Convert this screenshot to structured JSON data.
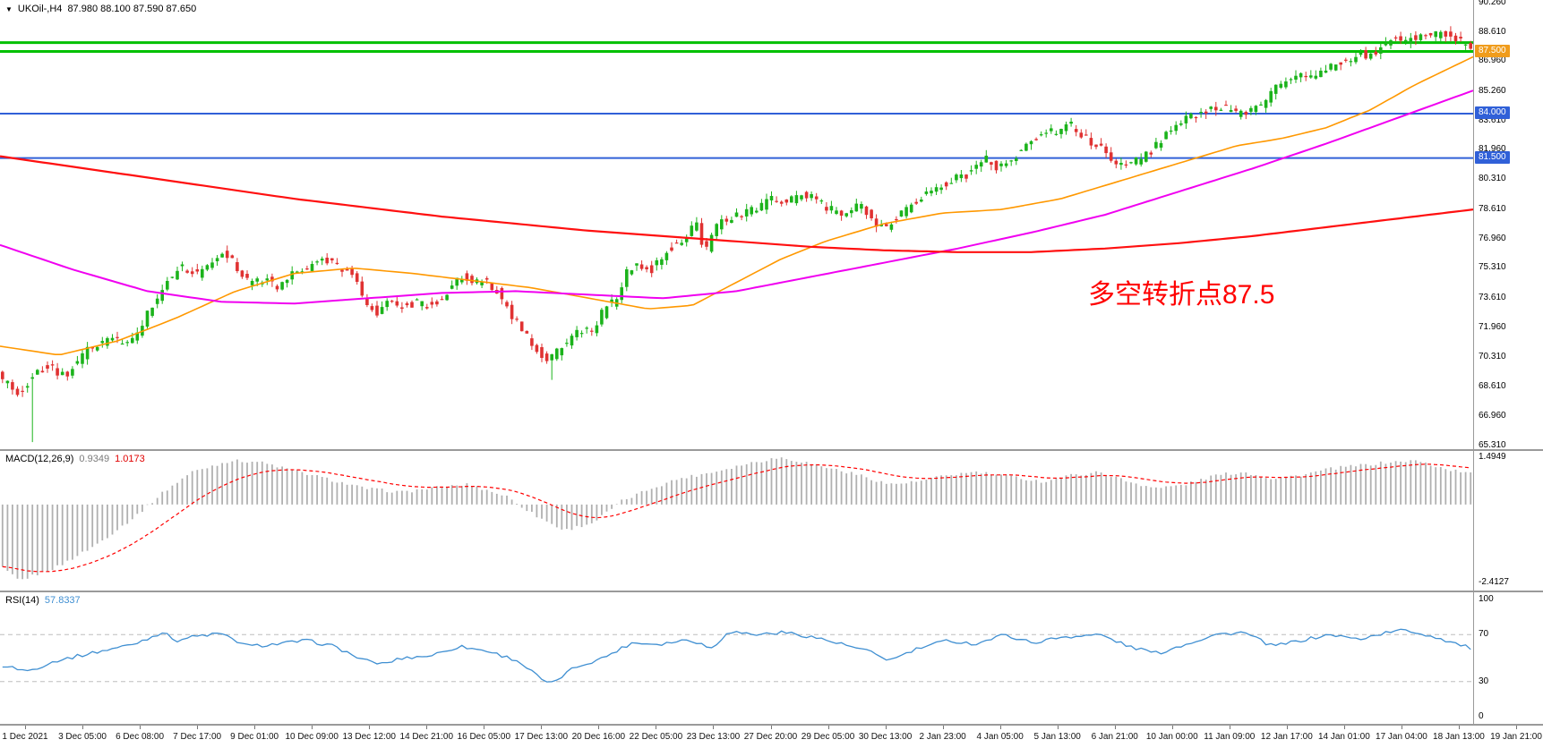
{
  "colors": {
    "up_candle": "#1bb31b",
    "down_candle": "#e03232",
    "hline_green": "#00c000",
    "hline_blue": "#3060d8",
    "tag_orange": "#f09c1c",
    "macd_bar": "#b0b0b0",
    "macd_signal": "#ff0000",
    "rsi_line": "#3f8fd2",
    "level_dash": "#bdbdbd"
  },
  "annotation": {
    "text": "多空转折点87.5",
    "color": "#ff0000"
  },
  "chart_data": [
    {
      "type": "candlestick",
      "symbol": "UKOil-",
      "timeframe": "H4",
      "header": {
        "symbol_period": "UKOil-,H4",
        "ohlc_text": "87.980 88.100 87.590 87.650"
      },
      "latest_ohlc": {
        "open": 87.98,
        "high": 88.1,
        "low": 87.59,
        "close": 87.65
      },
      "num_candles": 295,
      "y_axis": {
        "max": 90.4,
        "min": 65.1,
        "tick_labels": [
          "90.260",
          "88.610",
          "86.960",
          "85.260",
          "83.610",
          "81.960",
          "80.310",
          "78.610",
          "76.960",
          "75.310",
          "73.610",
          "71.960",
          "70.310",
          "68.610",
          "66.960",
          "65.310"
        ]
      },
      "x_tick_labels": [
        "1 Dec 2021",
        "3 Dec 05:00",
        "6 Dec 08:00",
        "7 Dec 17:00",
        "9 Dec 01:00",
        "10 Dec 09:00",
        "13 Dec 12:00",
        "14 Dec 21:00",
        "16 Dec 05:00",
        "17 Dec 13:00",
        "20 Dec 16:00",
        "22 Dec 05:00",
        "23 Dec 13:00",
        "27 Dec 20:00",
        "29 Dec 05:00",
        "30 Dec 13:00",
        "2 Jan 23:00",
        "4 Jan 05:00",
        "5 Jan 13:00",
        "6 Jan 21:00",
        "10 Jan 00:00",
        "11 Jan 09:00",
        "12 Jan 17:00",
        "14 Jan 01:00",
        "17 Jan 04:00",
        "18 Jan 13:00",
        "19 Jan 21:00"
      ],
      "hlines": [
        {
          "value": 88.0,
          "color": "#00c000",
          "width": 3
        },
        {
          "value": 87.5,
          "color": "#00c000",
          "width": 3,
          "tag": "87.500",
          "tag_bg": "#f09c1c"
        },
        {
          "value": 84.0,
          "color": "#3060d8",
          "width": 2,
          "tag": "84.000",
          "tag_bg": "#3060d8"
        },
        {
          "value": 81.5,
          "color": "#3060d8",
          "width": 2,
          "tag": "81.500",
          "tag_bg": "#3060d8"
        }
      ],
      "price_path_anchors": [
        [
          0,
          69.3
        ],
        [
          0.013,
          68.2
        ],
        [
          0.02,
          68.8
        ],
        [
          0.033,
          69.8
        ],
        [
          0.045,
          69.2
        ],
        [
          0.06,
          70.6
        ],
        [
          0.075,
          71.3
        ],
        [
          0.09,
          71.0
        ],
        [
          0.105,
          73.2
        ],
        [
          0.115,
          74.6
        ],
        [
          0.125,
          75.4
        ],
        [
          0.135,
          74.9
        ],
        [
          0.145,
          75.6
        ],
        [
          0.153,
          76.2
        ],
        [
          0.16,
          75.6
        ],
        [
          0.17,
          74.5
        ],
        [
          0.18,
          74.7
        ],
        [
          0.19,
          74.3
        ],
        [
          0.2,
          74.9
        ],
        [
          0.21,
          75.3
        ],
        [
          0.22,
          75.8
        ],
        [
          0.23,
          75.4
        ],
        [
          0.24,
          75.0
        ],
        [
          0.25,
          73.4
        ],
        [
          0.258,
          72.8
        ],
        [
          0.265,
          73.3
        ],
        [
          0.275,
          73.1
        ],
        [
          0.285,
          73.4
        ],
        [
          0.295,
          73.2
        ],
        [
          0.305,
          74.0
        ],
        [
          0.315,
          74.9
        ],
        [
          0.322,
          74.4
        ],
        [
          0.33,
          74.6
        ],
        [
          0.34,
          73.9
        ],
        [
          0.348,
          72.8
        ],
        [
          0.356,
          71.8
        ],
        [
          0.365,
          70.8
        ],
        [
          0.373,
          70.2
        ],
        [
          0.38,
          70.6
        ],
        [
          0.39,
          71.4
        ],
        [
          0.398,
          72.0
        ],
        [
          0.405,
          71.6
        ],
        [
          0.412,
          73.1
        ],
        [
          0.42,
          73.5
        ],
        [
          0.428,
          75.2
        ],
        [
          0.436,
          75.4
        ],
        [
          0.445,
          75.2
        ],
        [
          0.455,
          76.4
        ],
        [
          0.465,
          76.9
        ],
        [
          0.474,
          78.0
        ],
        [
          0.48,
          76.0
        ],
        [
          0.487,
          77.6
        ],
        [
          0.495,
          78.1
        ],
        [
          0.505,
          78.3
        ],
        [
          0.515,
          78.6
        ],
        [
          0.525,
          79.2
        ],
        [
          0.535,
          79.0
        ],
        [
          0.545,
          79.5
        ],
        [
          0.555,
          79.2
        ],
        [
          0.565,
          78.6
        ],
        [
          0.575,
          78.2
        ],
        [
          0.585,
          78.9
        ],
        [
          0.595,
          78.0
        ],
        [
          0.602,
          77.4
        ],
        [
          0.61,
          78.2
        ],
        [
          0.62,
          78.9
        ],
        [
          0.63,
          79.5
        ],
        [
          0.64,
          79.9
        ],
        [
          0.65,
          80.3
        ],
        [
          0.66,
          80.6
        ],
        [
          0.67,
          81.5
        ],
        [
          0.68,
          80.9
        ],
        [
          0.69,
          81.6
        ],
        [
          0.7,
          82.4
        ],
        [
          0.71,
          82.8
        ],
        [
          0.72,
          83.1
        ],
        [
          0.728,
          83.4
        ],
        [
          0.736,
          82.8
        ],
        [
          0.745,
          82.2
        ],
        [
          0.755,
          81.6
        ],
        [
          0.765,
          81.0
        ],
        [
          0.775,
          81.4
        ],
        [
          0.785,
          82.0
        ],
        [
          0.795,
          83.2
        ],
        [
          0.805,
          83.6
        ],
        [
          0.815,
          84.0
        ],
        [
          0.825,
          84.4
        ],
        [
          0.835,
          84.2
        ],
        [
          0.845,
          83.9
        ],
        [
          0.855,
          84.3
        ],
        [
          0.865,
          85.2
        ],
        [
          0.875,
          86.0
        ],
        [
          0.885,
          86.3
        ],
        [
          0.893,
          85.9
        ],
        [
          0.9,
          86.3
        ],
        [
          0.91,
          87.0
        ],
        [
          0.918,
          86.8
        ],
        [
          0.926,
          87.4
        ],
        [
          0.934,
          87.2
        ],
        [
          0.942,
          87.9
        ],
        [
          0.95,
          88.3
        ],
        [
          0.958,
          88.1
        ],
        [
          0.966,
          88.5
        ],
        [
          0.974,
          88.3
        ],
        [
          0.982,
          88.6
        ],
        [
          0.99,
          88.2
        ],
        [
          1,
          87.65
        ]
      ],
      "low_spikes": [
        [
          0.019,
          65.5
        ],
        [
          0.373,
          69.0
        ]
      ],
      "moving_averages": [
        {
          "name": "ma-fast-orange",
          "color": "#ff9800",
          "width": 1.6,
          "anchors": [
            [
              0,
              70.9
            ],
            [
              0.04,
              70.4
            ],
            [
              0.08,
              71.2
            ],
            [
              0.12,
              72.5
            ],
            [
              0.16,
              74.0
            ],
            [
              0.2,
              75.0
            ],
            [
              0.24,
              75.3
            ],
            [
              0.28,
              75.0
            ],
            [
              0.32,
              74.6
            ],
            [
              0.36,
              74.2
            ],
            [
              0.4,
              73.6
            ],
            [
              0.44,
              73.0
            ],
            [
              0.47,
              73.2
            ],
            [
              0.5,
              74.5
            ],
            [
              0.53,
              75.8
            ],
            [
              0.56,
              76.8
            ],
            [
              0.6,
              77.8
            ],
            [
              0.64,
              78.4
            ],
            [
              0.68,
              78.6
            ],
            [
              0.72,
              79.2
            ],
            [
              0.76,
              80.2
            ],
            [
              0.8,
              81.2
            ],
            [
              0.84,
              82.2
            ],
            [
              0.87,
              82.6
            ],
            [
              0.9,
              83.2
            ],
            [
              0.93,
              84.2
            ],
            [
              0.96,
              85.6
            ],
            [
              1,
              87.2
            ]
          ]
        },
        {
          "name": "ma-mid-magenta",
          "color": "#f000f0",
          "width": 2,
          "anchors": [
            [
              0,
              76.6
            ],
            [
              0.05,
              75.2
            ],
            [
              0.1,
              74.0
            ],
            [
              0.15,
              73.4
            ],
            [
              0.2,
              73.3
            ],
            [
              0.25,
              73.6
            ],
            [
              0.3,
              73.9
            ],
            [
              0.35,
              74.0
            ],
            [
              0.4,
              73.8
            ],
            [
              0.45,
              73.6
            ],
            [
              0.5,
              74.0
            ],
            [
              0.55,
              74.8
            ],
            [
              0.6,
              75.6
            ],
            [
              0.65,
              76.4
            ],
            [
              0.7,
              77.3
            ],
            [
              0.75,
              78.3
            ],
            [
              0.8,
              79.6
            ],
            [
              0.85,
              80.9
            ],
            [
              0.9,
              82.3
            ],
            [
              0.95,
              83.8
            ],
            [
              1,
              85.3
            ]
          ]
        },
        {
          "name": "ma-slow-red",
          "color": "#ff1010",
          "width": 2.2,
          "anchors": [
            [
              0,
              81.6
            ],
            [
              0.1,
              80.4
            ],
            [
              0.2,
              79.2
            ],
            [
              0.3,
              78.2
            ],
            [
              0.4,
              77.4
            ],
            [
              0.5,
              76.8
            ],
            [
              0.55,
              76.5
            ],
            [
              0.6,
              76.3
            ],
            [
              0.65,
              76.2
            ],
            [
              0.7,
              76.2
            ],
            [
              0.75,
              76.4
            ],
            [
              0.8,
              76.7
            ],
            [
              0.85,
              77.1
            ],
            [
              0.9,
              77.6
            ],
            [
              0.95,
              78.1
            ],
            [
              1,
              78.6
            ]
          ]
        }
      ]
    },
    {
      "type": "macd-histogram",
      "label": "MACD(12,26,9)",
      "value_main": "0.9349",
      "value_signal": "1.0173",
      "y_axis": {
        "max": 1.65,
        "min": -2.65,
        "tick_labels": [
          "1.4949",
          "-2.4127"
        ]
      },
      "anchors": [
        [
          0,
          -1.9
        ],
        [
          0.013,
          -2.35
        ],
        [
          0.04,
          -1.9
        ],
        [
          0.065,
          -1.25
        ],
        [
          0.091,
          -0.4
        ],
        [
          0.11,
          0.35
        ],
        [
          0.13,
          1.0
        ],
        [
          0.156,
          1.35
        ],
        [
          0.175,
          1.32
        ],
        [
          0.195,
          1.1
        ],
        [
          0.221,
          0.8
        ],
        [
          0.247,
          0.5
        ],
        [
          0.273,
          0.38
        ],
        [
          0.292,
          0.5
        ],
        [
          0.318,
          0.62
        ],
        [
          0.344,
          0.25
        ],
        [
          0.364,
          -0.35
        ],
        [
          0.383,
          -0.8
        ],
        [
          0.403,
          -0.55
        ],
        [
          0.422,
          0.1
        ],
        [
          0.442,
          0.5
        ],
        [
          0.461,
          0.8
        ],
        [
          0.484,
          1.0
        ],
        [
          0.506,
          1.25
        ],
        [
          0.529,
          1.45
        ],
        [
          0.545,
          1.32
        ],
        [
          0.565,
          1.1
        ],
        [
          0.584,
          0.9
        ],
        [
          0.604,
          0.62
        ],
        [
          0.623,
          0.7
        ],
        [
          0.643,
          0.9
        ],
        [
          0.662,
          1.0
        ],
        [
          0.688,
          0.85
        ],
        [
          0.708,
          0.7
        ],
        [
          0.727,
          0.9
        ],
        [
          0.747,
          1.0
        ],
        [
          0.766,
          0.7
        ],
        [
          0.786,
          0.5
        ],
        [
          0.805,
          0.62
        ],
        [
          0.825,
          0.9
        ],
        [
          0.844,
          1.0
        ],
        [
          0.864,
          0.8
        ],
        [
          0.883,
          0.9
        ],
        [
          0.903,
          1.1
        ],
        [
          0.922,
          1.2
        ],
        [
          0.942,
          1.3
        ],
        [
          0.961,
          1.35
        ],
        [
          0.981,
          1.1
        ],
        [
          1,
          0.9349
        ]
      ]
    },
    {
      "type": "rsi-line",
      "label": "RSI(14)",
      "value": "57.8337",
      "levels": [
        70,
        30
      ],
      "y_axis": {
        "max": 100,
        "min": 0,
        "tick_labels": [
          "100",
          "70",
          "30",
          "0"
        ]
      },
      "anchors": [
        [
          0,
          44
        ],
        [
          0.019,
          39
        ],
        [
          0.039,
          48
        ],
        [
          0.065,
          55
        ],
        [
          0.091,
          62
        ],
        [
          0.11,
          72
        ],
        [
          0.12,
          65
        ],
        [
          0.13,
          68
        ],
        [
          0.149,
          71
        ],
        [
          0.169,
          60
        ],
        [
          0.188,
          62
        ],
        [
          0.208,
          65
        ],
        [
          0.227,
          60
        ],
        [
          0.247,
          48
        ],
        [
          0.26,
          45
        ],
        [
          0.273,
          50
        ],
        [
          0.292,
          52
        ],
        [
          0.312,
          60
        ],
        [
          0.331,
          56
        ],
        [
          0.351,
          48
        ],
        [
          0.373,
          27
        ],
        [
          0.39,
          42
        ],
        [
          0.409,
          50
        ],
        [
          0.429,
          63
        ],
        [
          0.448,
          62
        ],
        [
          0.468,
          66
        ],
        [
          0.484,
          58
        ],
        [
          0.494,
          73
        ],
        [
          0.513,
          70
        ],
        [
          0.532,
          72
        ],
        [
          0.552,
          68
        ],
        [
          0.571,
          62
        ],
        [
          0.591,
          55
        ],
        [
          0.604,
          48
        ],
        [
          0.623,
          58
        ],
        [
          0.643,
          65
        ],
        [
          0.662,
          62
        ],
        [
          0.682,
          70
        ],
        [
          0.701,
          63
        ],
        [
          0.721,
          68
        ],
        [
          0.747,
          70
        ],
        [
          0.766,
          60
        ],
        [
          0.786,
          54
        ],
        [
          0.805,
          62
        ],
        [
          0.825,
          70
        ],
        [
          0.844,
          72
        ],
        [
          0.864,
          60
        ],
        [
          0.883,
          65
        ],
        [
          0.903,
          70
        ],
        [
          0.922,
          66
        ],
        [
          0.942,
          72
        ],
        [
          0.954,
          74
        ],
        [
          0.974,
          68
        ],
        [
          1,
          57.8
        ]
      ]
    }
  ]
}
